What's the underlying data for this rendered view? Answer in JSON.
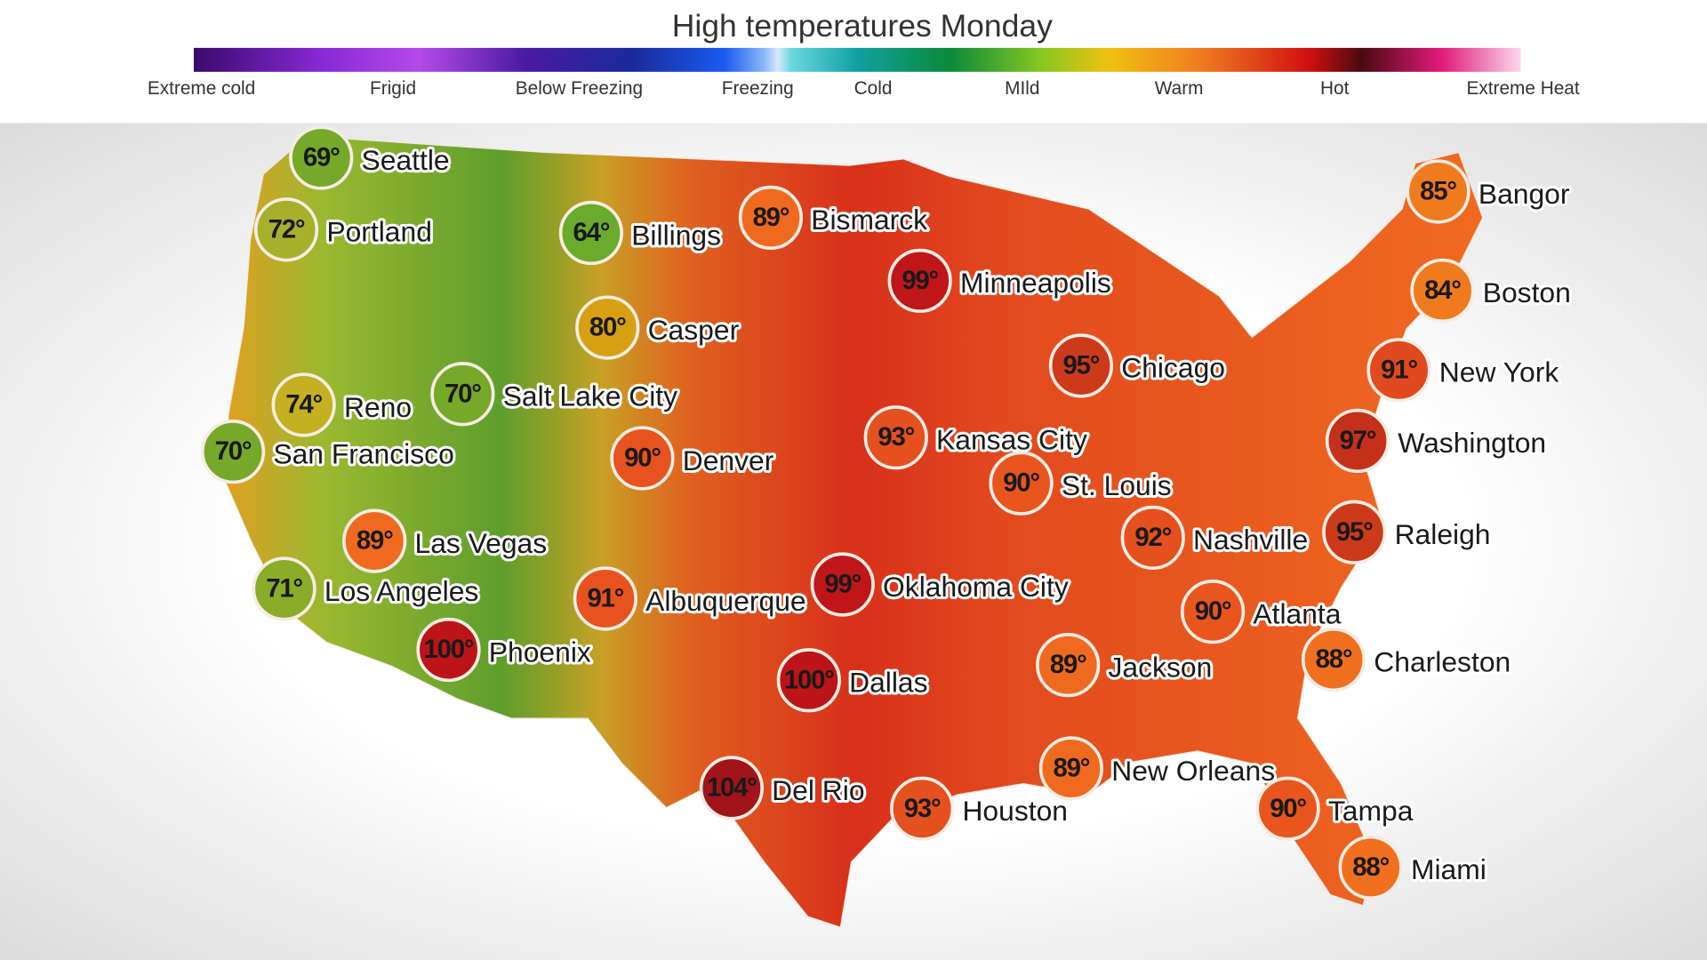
{
  "header": {
    "title": "High temperatures Monday",
    "legend": [
      "Extreme cold",
      "Frigid",
      "Below Freezing",
      "Freezing",
      "Cold",
      "MIld",
      "Warm",
      "Hot",
      "Extreme Heat"
    ]
  },
  "cities": [
    {
      "name": "Seattle",
      "label": "69°",
      "color": "#76a82a"
    },
    {
      "name": "Portland",
      "label": "72°",
      "color": "#a6b02a"
    },
    {
      "name": "Billings",
      "label": "64°",
      "color": "#6aab2c"
    },
    {
      "name": "Bismarck",
      "label": "89°",
      "color": "#ef6a1e"
    },
    {
      "name": "Minneapolis",
      "label": "99°",
      "color": "#c0161a"
    },
    {
      "name": "Casper",
      "label": "80°",
      "color": "#d6a012"
    },
    {
      "name": "Salt Lake City",
      "label": "70°",
      "color": "#76a82a"
    },
    {
      "name": "Reno",
      "label": "74°",
      "color": "#c4b020"
    },
    {
      "name": "San Francisco",
      "label": "70°",
      "color": "#76a82a"
    },
    {
      "name": "Denver",
      "label": "90°",
      "color": "#e8521e"
    },
    {
      "name": "Kansas City",
      "label": "93°",
      "color": "#e4501e"
    },
    {
      "name": "Chicago",
      "label": "95°",
      "color": "#cc3a1a"
    },
    {
      "name": "St. Louis",
      "label": "90°",
      "color": "#e8561e"
    },
    {
      "name": "Nashville",
      "label": "92°",
      "color": "#e4501e"
    },
    {
      "name": "Las Vegas",
      "label": "89°",
      "color": "#ef6a1e"
    },
    {
      "name": "Albuquerque",
      "label": "91°",
      "color": "#e8521e"
    },
    {
      "name": "Oklahoma City",
      "label": "99°",
      "color": "#c0161a"
    },
    {
      "name": "Los Angeles",
      "label": "71°",
      "color": "#8aac28"
    },
    {
      "name": "Phoenix",
      "label": "100°",
      "color": "#bc1418"
    },
    {
      "name": "Dallas",
      "label": "100°",
      "color": "#bc1418"
    },
    {
      "name": "Atlanta",
      "label": "90°",
      "color": "#e8561e"
    },
    {
      "name": "Jackson",
      "label": "89°",
      "color": "#ef6a1e"
    },
    {
      "name": "Charleston",
      "label": "88°",
      "color": "#f07020"
    },
    {
      "name": "Del Rio",
      "label": "104°",
      "color": "#a0141a"
    },
    {
      "name": "Houston",
      "label": "93°",
      "color": "#e4501e"
    },
    {
      "name": "New Orleans",
      "label": "89°",
      "color": "#ef6a1e"
    },
    {
      "name": "Tampa",
      "label": "90°",
      "color": "#e8561e"
    },
    {
      "name": "Miami",
      "label": "88°",
      "color": "#f07020"
    },
    {
      "name": "Bangor",
      "label": "85°",
      "color": "#f07a1e"
    },
    {
      "name": "Boston",
      "label": "84°",
      "color": "#f07a1e"
    },
    {
      "name": "New York",
      "label": "91°",
      "color": "#e04a1e"
    },
    {
      "name": "Washington",
      "label": "97°",
      "color": "#c4301a"
    },
    {
      "name": "Raleigh",
      "label": "95°",
      "color": "#cc3a1a"
    }
  ]
}
